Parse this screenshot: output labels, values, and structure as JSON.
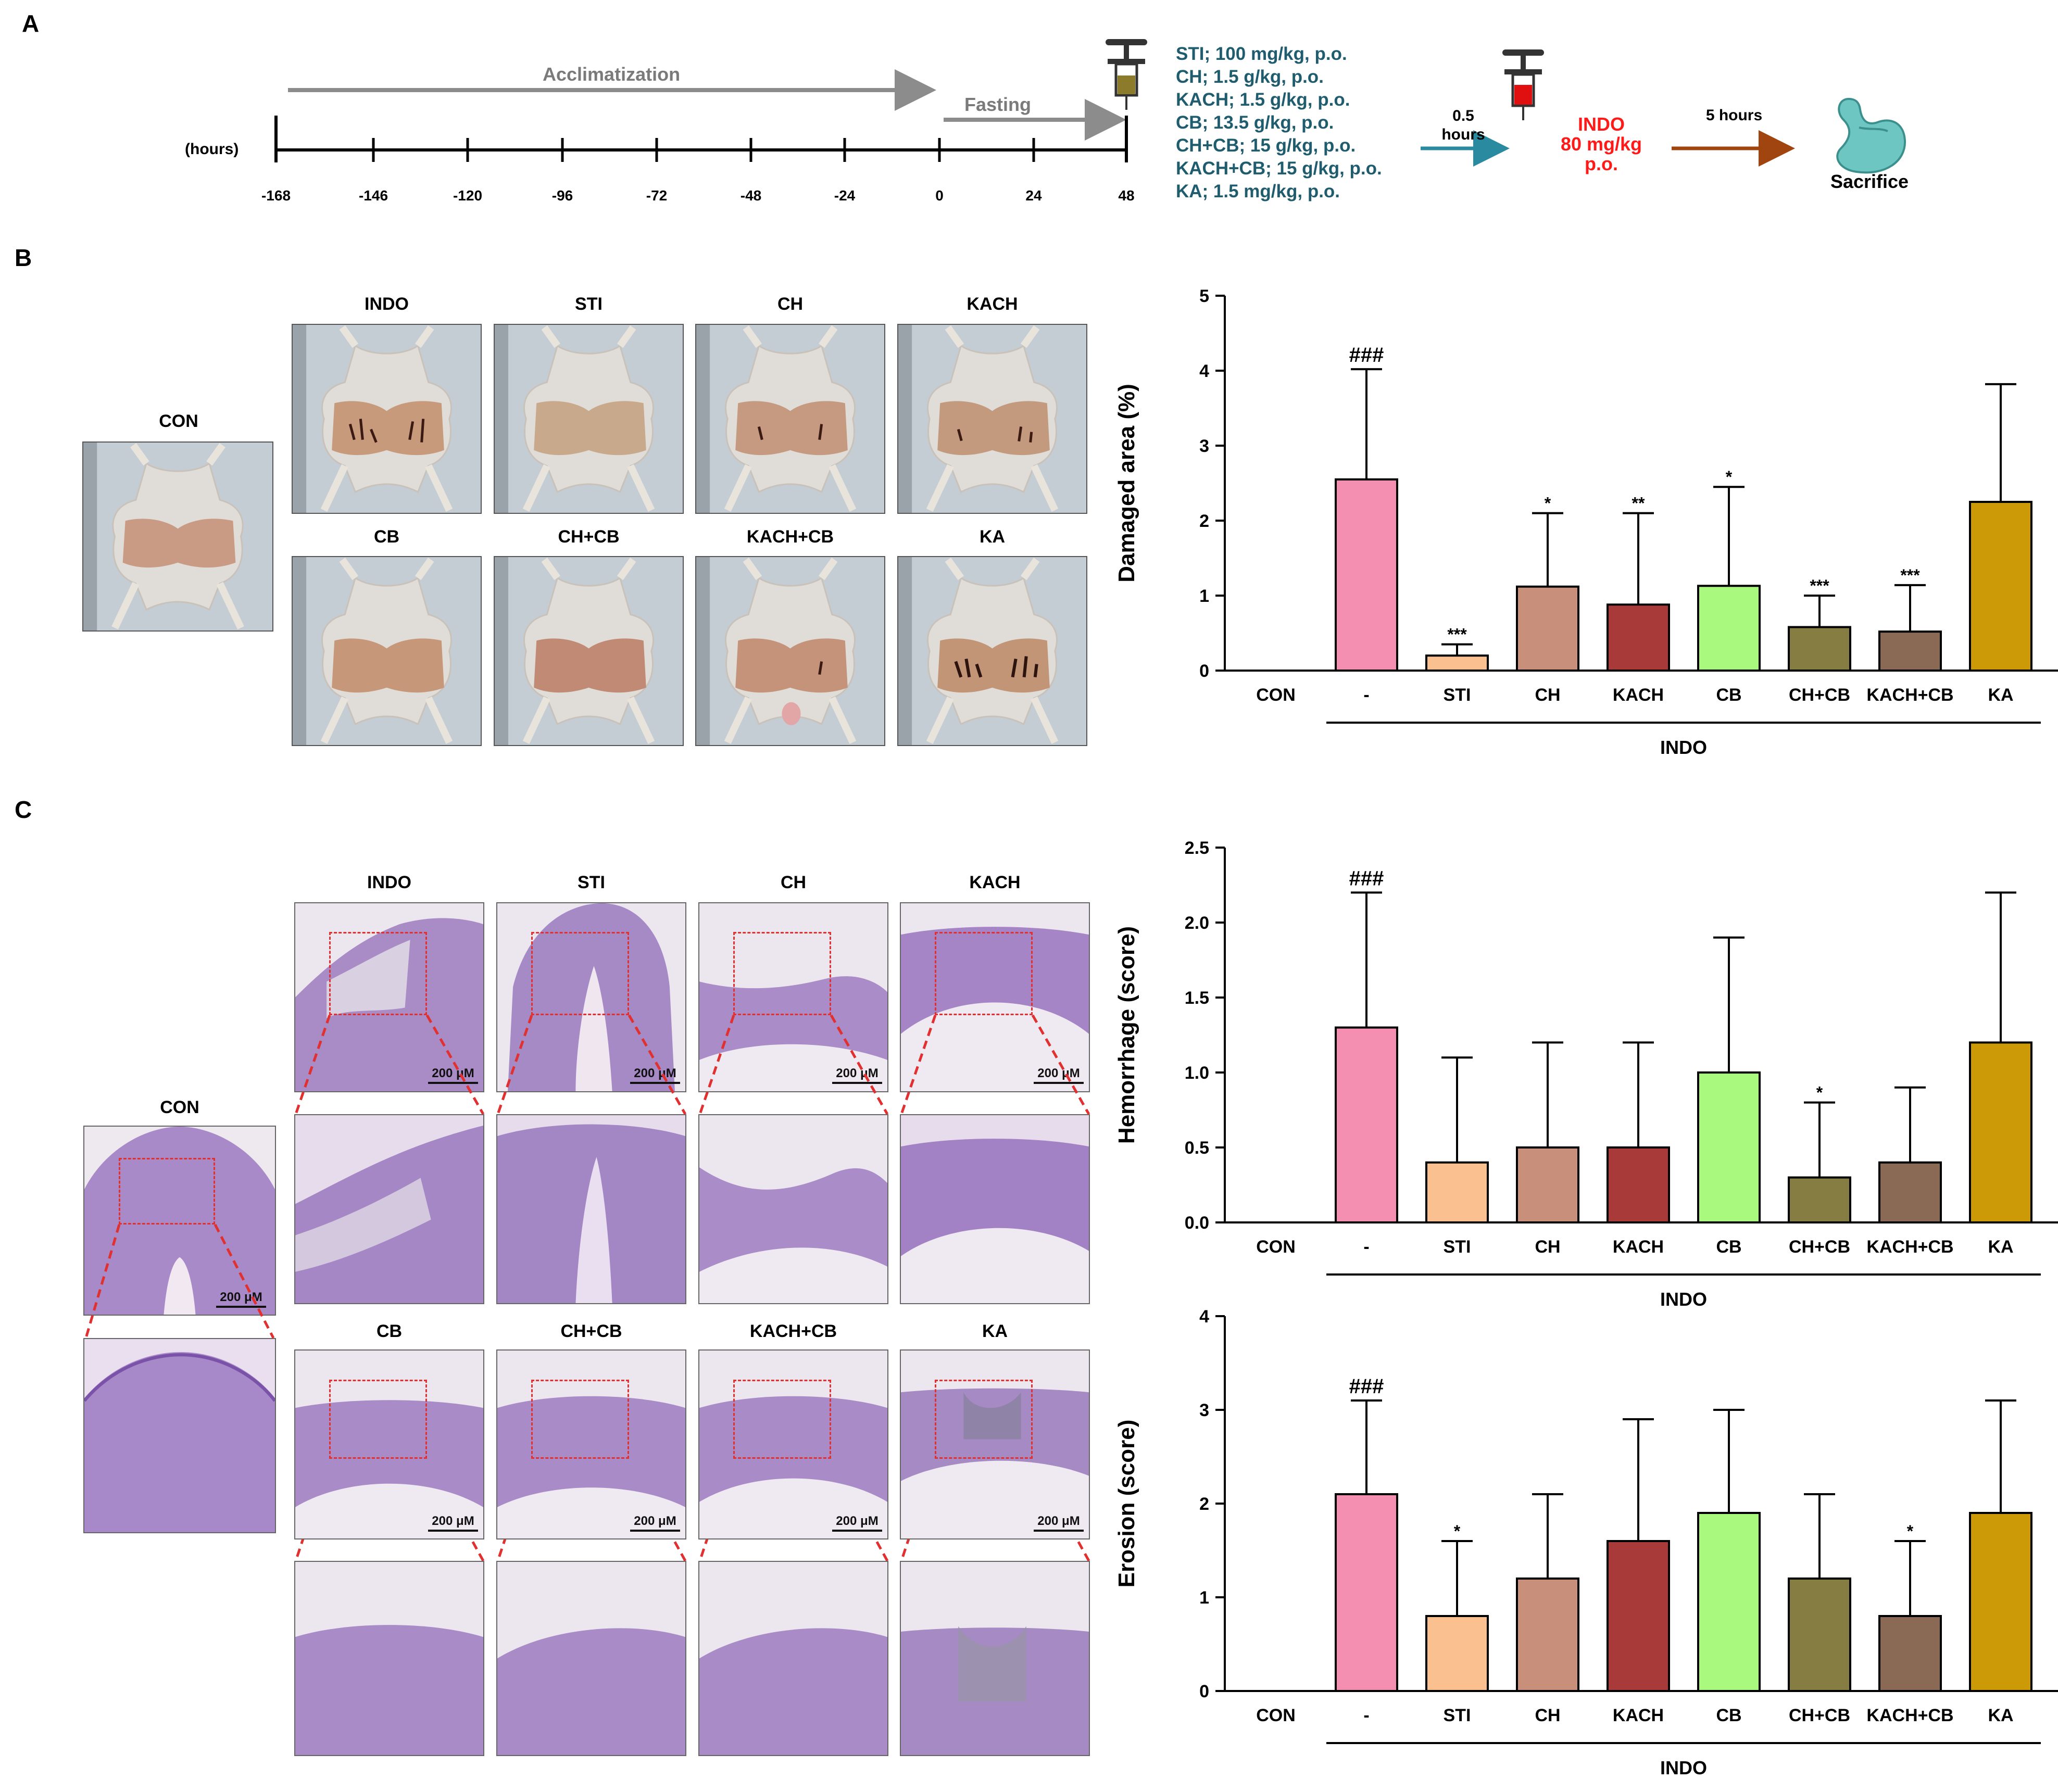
{
  "panels": {
    "a": "A",
    "b": "B",
    "c": "C"
  },
  "timeline": {
    "unit_label": "(hours)",
    "ticks": [
      "-168",
      "-146",
      "-120",
      "-96",
      "-72",
      "-48",
      "-24",
      "0",
      "24",
      "48"
    ],
    "acclimatization": "Acclimatization",
    "fasting": "Fasting",
    "doses": [
      "STI; 100 mg/kg, p.o.",
      "CH; 1.5 g/kg, p.o.",
      "KACH; 1.5 g/kg, p.o.",
      "CB; 13.5 g/kg, p.o.",
      "CH+CB; 15 g/kg, p.o.",
      "KACH+CB; 15 g/kg, p.o.",
      "KA; 1.5 mg/kg, p.o."
    ],
    "interval1_line1": "0.5",
    "interval1_line2": "hours",
    "indo_line1": "INDO",
    "indo_line2": "80 mg/kg",
    "indo_line3": "p.o.",
    "interval2": "5 hours",
    "sacrifice": "Sacrifice",
    "colors": {
      "doses": "#1f5d6e",
      "indo": "#ff1a1a",
      "arrow1": "#2a8aa0",
      "arrow2": "#a0450f",
      "grey_arrow": "#8c8c8c"
    }
  },
  "photo_labels": {
    "con": "CON",
    "top": [
      "INDO",
      "STI",
      "CH",
      "KACH"
    ],
    "bottom": [
      "CB",
      "CH+CB",
      "KACH+CB",
      "KA"
    ]
  },
  "histo_labels": {
    "con": "CON",
    "top": [
      "INDO",
      "STI",
      "CH",
      "KACH"
    ],
    "bottom": [
      "CB",
      "CH+CB",
      "KACH+CB",
      "KA"
    ],
    "scale": "200 μM"
  },
  "chart_data": [
    {
      "type": "bar",
      "id": "damaged-area",
      "ylabel": "Damaged area (%)",
      "ylim": [
        0,
        5
      ],
      "yticks": [
        "0",
        "1",
        "2",
        "3",
        "4",
        "5"
      ],
      "categories": [
        "CON",
        "-",
        "STI",
        "CH",
        "KACH",
        "CB",
        "CH+CB",
        "KACH+CB",
        "KA"
      ],
      "values": [
        0,
        2.55,
        0.2,
        1.12,
        0.88,
        1.13,
        0.58,
        0.52,
        2.25
      ],
      "errors": [
        0,
        1.47,
        0.15,
        0.98,
        1.22,
        1.32,
        0.42,
        0.62,
        1.57
      ],
      "significance": [
        "",
        "###",
        "***",
        "*",
        "**",
        "*",
        "***",
        "***",
        ""
      ],
      "group_label": "INDO",
      "colors": [
        "#ffffff",
        "#f48fb1",
        "#fac090",
        "#c8907a",
        "#a83a3a",
        "#a9f97e",
        "#857d42",
        "#8a6a55",
        "#cc9a06"
      ]
    },
    {
      "type": "bar",
      "id": "hemorrhage",
      "ylabel": "Hemorrhage (score)",
      "ylim": [
        0,
        2.5
      ],
      "yticks": [
        "0.0",
        "0.5",
        "1.0",
        "1.5",
        "2.0",
        "2.5"
      ],
      "categories": [
        "CON",
        "-",
        "STI",
        "CH",
        "KACH",
        "CB",
        "CH+CB",
        "KACH+CB",
        "KA"
      ],
      "values": [
        0,
        1.3,
        0.4,
        0.5,
        0.5,
        1.0,
        0.3,
        0.4,
        1.2
      ],
      "errors": [
        0,
        0.9,
        0.7,
        0.7,
        0.7,
        0.9,
        0.5,
        0.5,
        1.0
      ],
      "significance": [
        "",
        "###",
        "",
        "",
        "",
        "",
        "*",
        "",
        ""
      ],
      "group_label": "INDO",
      "colors": [
        "#ffffff",
        "#f48fb1",
        "#fac090",
        "#c8907a",
        "#a83a3a",
        "#a9f97e",
        "#857d42",
        "#8a6a55",
        "#cc9a06"
      ]
    },
    {
      "type": "bar",
      "id": "erosion",
      "ylabel": "Erosion (score)",
      "ylim": [
        0,
        4
      ],
      "yticks": [
        "0",
        "1",
        "2",
        "3",
        "4"
      ],
      "categories": [
        "CON",
        "-",
        "STI",
        "CH",
        "KACH",
        "CB",
        "CH+CB",
        "KACH+CB",
        "KA"
      ],
      "values": [
        0,
        2.1,
        0.8,
        1.2,
        1.6,
        1.9,
        1.2,
        0.8,
        1.9
      ],
      "errors": [
        0,
        1.0,
        0.8,
        0.9,
        1.3,
        1.1,
        0.9,
        0.8,
        1.2
      ],
      "significance": [
        "",
        "###",
        "*",
        "",
        "",
        "",
        "",
        "*",
        ""
      ],
      "group_label": "INDO",
      "colors": [
        "#ffffff",
        "#f48fb1",
        "#fac090",
        "#c8907a",
        "#a83a3a",
        "#a9f97e",
        "#857d42",
        "#8a6a55",
        "#cc9a06"
      ]
    }
  ]
}
